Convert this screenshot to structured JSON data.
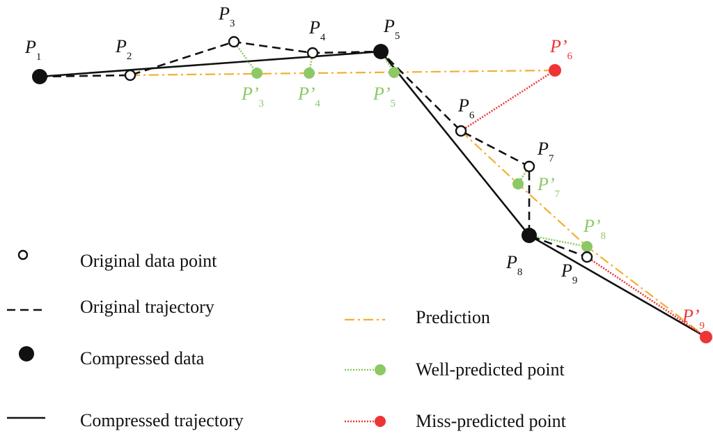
{
  "colors": {
    "black": "#111111",
    "prediction": "#f0b030",
    "well": "#8cc865",
    "miss": "#ee3535"
  },
  "points": {
    "p1": {
      "name": "P",
      "sub": "1"
    },
    "p2": {
      "name": "P",
      "sub": "2"
    },
    "p3": {
      "name": "P",
      "sub": "3"
    },
    "p4": {
      "name": "P",
      "sub": "4"
    },
    "p5": {
      "name": "P",
      "sub": "5"
    },
    "p6": {
      "name": "P",
      "sub": "6"
    },
    "p7": {
      "name": "P",
      "sub": "7"
    },
    "p8": {
      "name": "P",
      "sub": "8"
    },
    "p9": {
      "name": "P",
      "sub": "9"
    }
  },
  "predicted": {
    "q3": {
      "name": "P’",
      "sub": "3"
    },
    "q4": {
      "name": "P’",
      "sub": "4"
    },
    "q5": {
      "name": "P’",
      "sub": "5"
    },
    "q6": {
      "name": "P’",
      "sub": "6"
    },
    "q7": {
      "name": "P’",
      "sub": "7"
    },
    "q8": {
      "name": "P’",
      "sub": "8"
    },
    "q9": {
      "name": "P’",
      "sub": "9"
    }
  },
  "legend": {
    "original_point": "Original data point",
    "original_trajectory": "Original trajectory",
    "compressed_data": "Compressed data",
    "compressed_trajectory": "Compressed trajectory",
    "prediction": "Prediction",
    "well_predicted": "Well-predicted point",
    "miss_predicted": "Miss-predicted point"
  }
}
